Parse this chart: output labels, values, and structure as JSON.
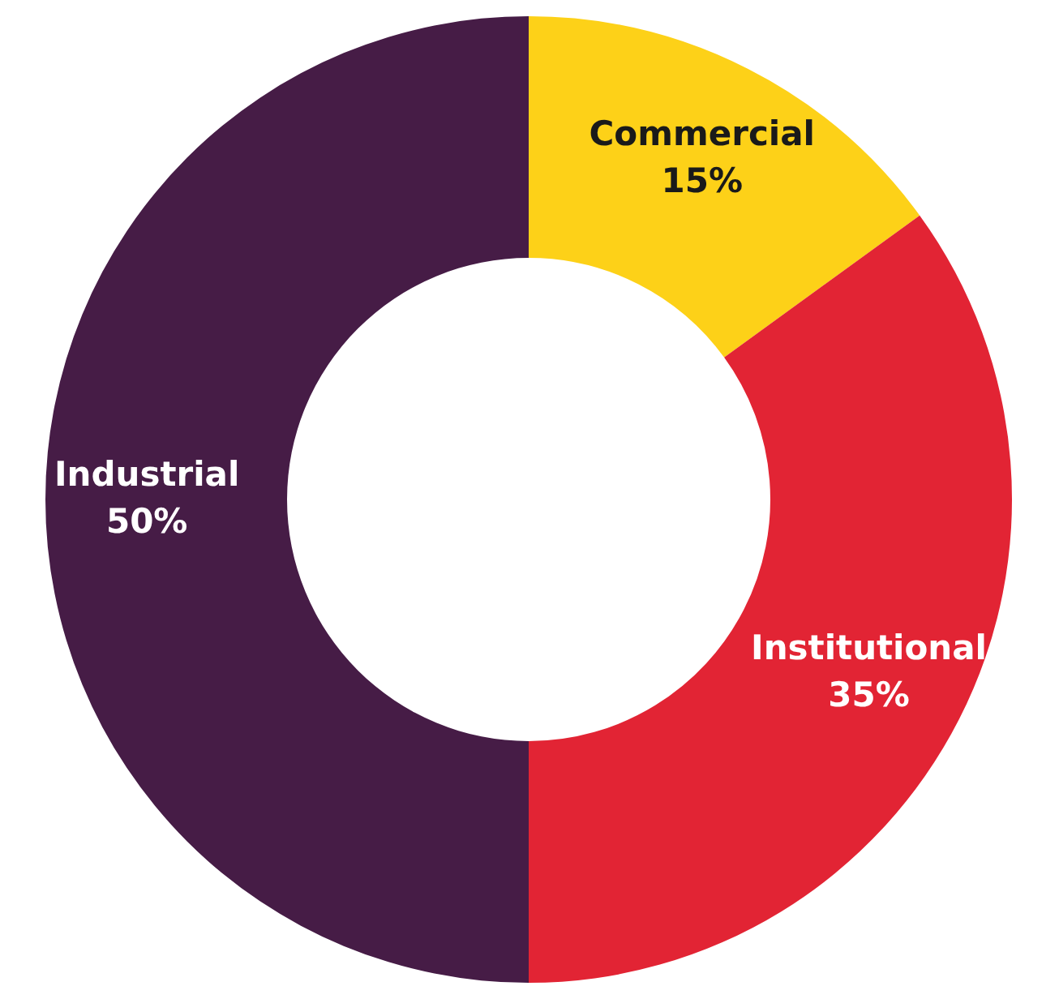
{
  "chart_data": {
    "type": "donut",
    "categories": [
      "Commercial",
      "Institutional",
      "Industrial"
    ],
    "values": [
      15,
      35,
      50
    ],
    "colors": [
      "#fdd118",
      "#e22434",
      "#461c46"
    ],
    "value_labels": [
      "15%",
      "35%",
      "50%"
    ],
    "legend": false
  }
}
